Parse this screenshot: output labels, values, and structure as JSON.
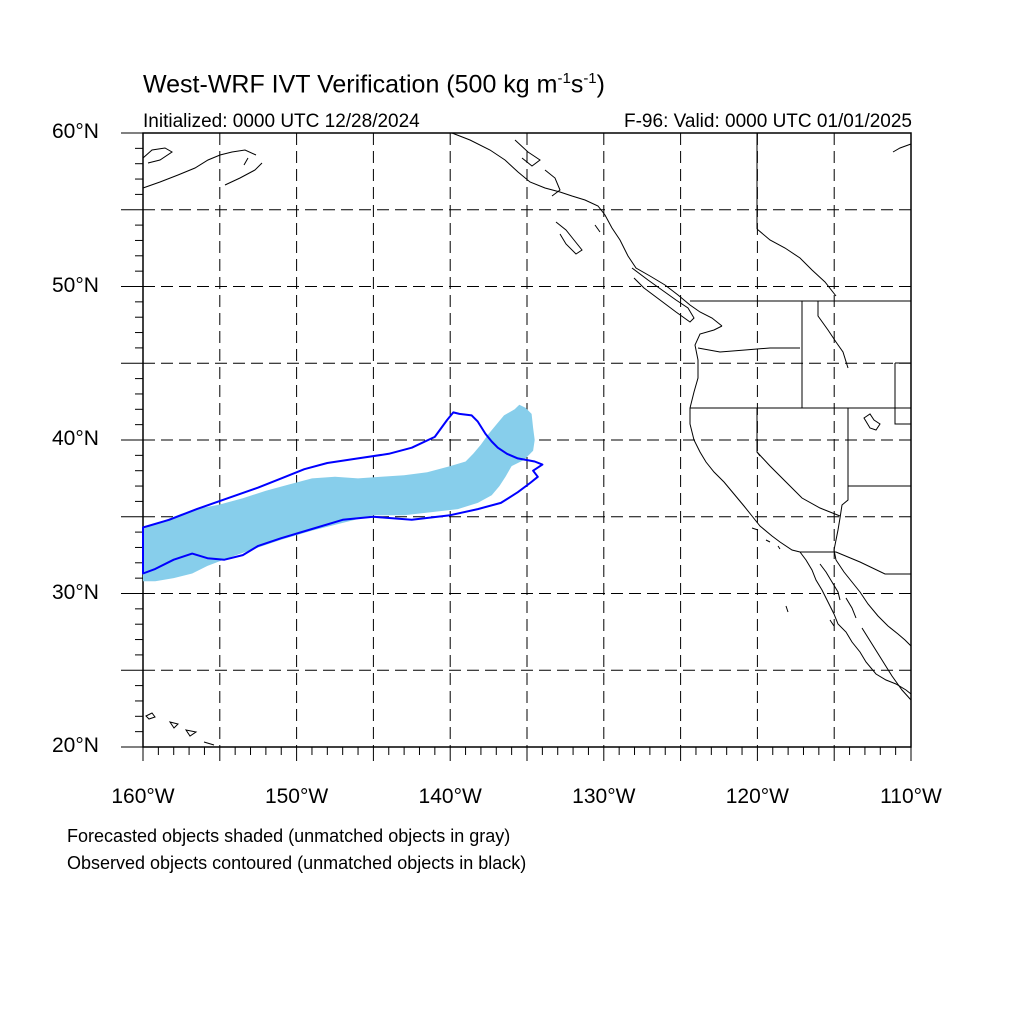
{
  "title": {
    "prefix": "West-WRF IVT Verification (500 kg m",
    "exp1": "-1",
    "mid": "s",
    "exp2": "-1",
    "suffix": ")"
  },
  "subtitle_left": "Initialized: 0000 UTC 12/28/2024",
  "subtitle_right": "F-96: Valid: 0000 UTC 01/01/2025",
  "map": {
    "lon_range": [
      -160,
      -110
    ],
    "lat_range": [
      20,
      60
    ],
    "gridlines_lon": [
      -155,
      -150,
      -145,
      -140,
      -135,
      -130,
      -125,
      -120,
      -115
    ],
    "gridlines_lat": [
      25,
      30,
      35,
      40,
      45,
      50,
      55
    ],
    "lat_labels": [
      {
        "lat": 60,
        "text": "60°N"
      },
      {
        "lat": 50,
        "text": "50°N"
      },
      {
        "lat": 40,
        "text": "40°N"
      },
      {
        "lat": 30,
        "text": "30°N"
      },
      {
        "lat": 20,
        "text": "20°N"
      }
    ],
    "lon_labels": [
      {
        "lon": -160,
        "text": "160°W"
      },
      {
        "lon": -150,
        "text": "150°W"
      },
      {
        "lon": -140,
        "text": "140°W"
      },
      {
        "lon": -130,
        "text": "130°W"
      },
      {
        "lon": -120,
        "text": "120°W"
      },
      {
        "lon": -110,
        "text": "110°W"
      }
    ],
    "colors": {
      "forecast_fill": "#87ceeb",
      "observed_contour": "#0000ff",
      "coastline": "#000000",
      "grid": "#000000"
    },
    "forecast_object": [
      [
        -160,
        34.2
      ],
      [
        -158.5,
        34.8
      ],
      [
        -157.5,
        35.2
      ],
      [
        -156,
        35.6
      ],
      [
        -155,
        35.8
      ],
      [
        -153.5,
        36.2
      ],
      [
        -152,
        36.7
      ],
      [
        -150.5,
        37.1
      ],
      [
        -149,
        37.5
      ],
      [
        -147.5,
        37.6
      ],
      [
        -146,
        37.5
      ],
      [
        -144.5,
        37.6
      ],
      [
        -143,
        37.7
      ],
      [
        -141.5,
        37.9
      ],
      [
        -140,
        38.3
      ],
      [
        -139,
        38.6
      ],
      [
        -138.5,
        39.1
      ],
      [
        -138,
        39.7
      ],
      [
        -137.5,
        40.4
      ],
      [
        -137,
        41.0
      ],
      [
        -136.5,
        41.6
      ],
      [
        -135.8,
        42.0
      ],
      [
        -135.5,
        42.3
      ],
      [
        -135.1,
        42.1
      ],
      [
        -134.7,
        41.7
      ],
      [
        -134.6,
        40.8
      ],
      [
        -134.5,
        40.0
      ],
      [
        -134.6,
        39.3
      ],
      [
        -135.2,
        38.7
      ],
      [
        -136,
        38.3
      ],
      [
        -136.4,
        37.6
      ],
      [
        -136.8,
        37.0
      ],
      [
        -137.3,
        36.4
      ],
      [
        -138.2,
        35.9
      ],
      [
        -139.5,
        35.5
      ],
      [
        -141.2,
        35.3
      ],
      [
        -143,
        35.1
      ],
      [
        -145,
        35.1
      ],
      [
        -147,
        34.6
      ],
      [
        -149,
        34.1
      ],
      [
        -151,
        33.5
      ],
      [
        -152.8,
        32.9
      ],
      [
        -154.5,
        32.3
      ],
      [
        -155.8,
        31.8
      ],
      [
        -156.8,
        31.3
      ],
      [
        -158,
        31.0
      ],
      [
        -159.2,
        30.8
      ],
      [
        -160,
        30.8
      ]
    ],
    "observed_object": [
      [
        -160,
        34.3
      ],
      [
        -158.3,
        34.8
      ],
      [
        -156.5,
        35.5
      ],
      [
        -154.5,
        36.2
      ],
      [
        -152.5,
        36.9
      ],
      [
        -151,
        37.5
      ],
      [
        -149.5,
        38.1
      ],
      [
        -148,
        38.5
      ],
      [
        -146,
        38.8
      ],
      [
        -144,
        39.1
      ],
      [
        -142.5,
        39.5
      ],
      [
        -141,
        40.2
      ],
      [
        -140.2,
        41.3
      ],
      [
        -139.8,
        41.8
      ],
      [
        -139.4,
        41.7
      ],
      [
        -138.6,
        41.6
      ],
      [
        -138.2,
        41.2
      ],
      [
        -137.7,
        40.4
      ],
      [
        -137.3,
        39.9
      ],
      [
        -136.9,
        39.5
      ],
      [
        -136.3,
        39.1
      ],
      [
        -135.6,
        38.8
      ],
      [
        -134.5,
        38.6
      ],
      [
        -134.0,
        38.4
      ],
      [
        -134.6,
        38.0
      ],
      [
        -134.3,
        37.6
      ],
      [
        -134.8,
        37.2
      ],
      [
        -135.6,
        36.6
      ],
      [
        -136.7,
        35.9
      ],
      [
        -138.2,
        35.5
      ],
      [
        -140,
        35.1
      ],
      [
        -142.5,
        34.8
      ],
      [
        -145,
        35.0
      ],
      [
        -147,
        34.8
      ],
      [
        -149,
        34.2
      ],
      [
        -151,
        33.6
      ],
      [
        -152.5,
        33.1
      ],
      [
        -153.5,
        32.5
      ],
      [
        -154.7,
        32.2
      ],
      [
        -155.8,
        32.3
      ],
      [
        -156.8,
        32.6
      ],
      [
        -158,
        32.2
      ],
      [
        -159.2,
        31.6
      ],
      [
        -160,
        31.3
      ]
    ]
  },
  "footnote1": "Forecasted objects shaded (unmatched objects in gray)",
  "footnote2": "Observed objects contoured (unmatched objects in black)"
}
